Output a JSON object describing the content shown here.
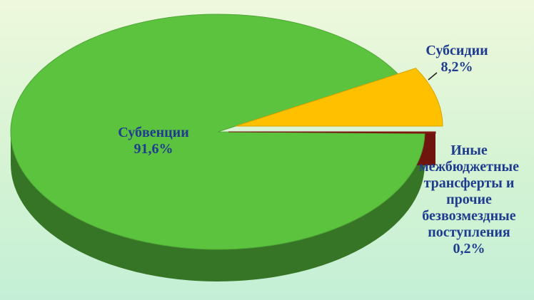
{
  "chart_data": {
    "type": "pie",
    "categories": [
      "Субвенции",
      "Субсидии",
      "Иные межбюджетные трансферты и прочие безвозмездные поступления"
    ],
    "values": [
      91.6,
      8.2,
      0.2
    ],
    "value_labels": [
      "91,6%",
      "8,2%",
      "0,2%"
    ],
    "colors": [
      "#5cc33f",
      "#ffc000",
      "#8b1a10"
    ]
  }
}
